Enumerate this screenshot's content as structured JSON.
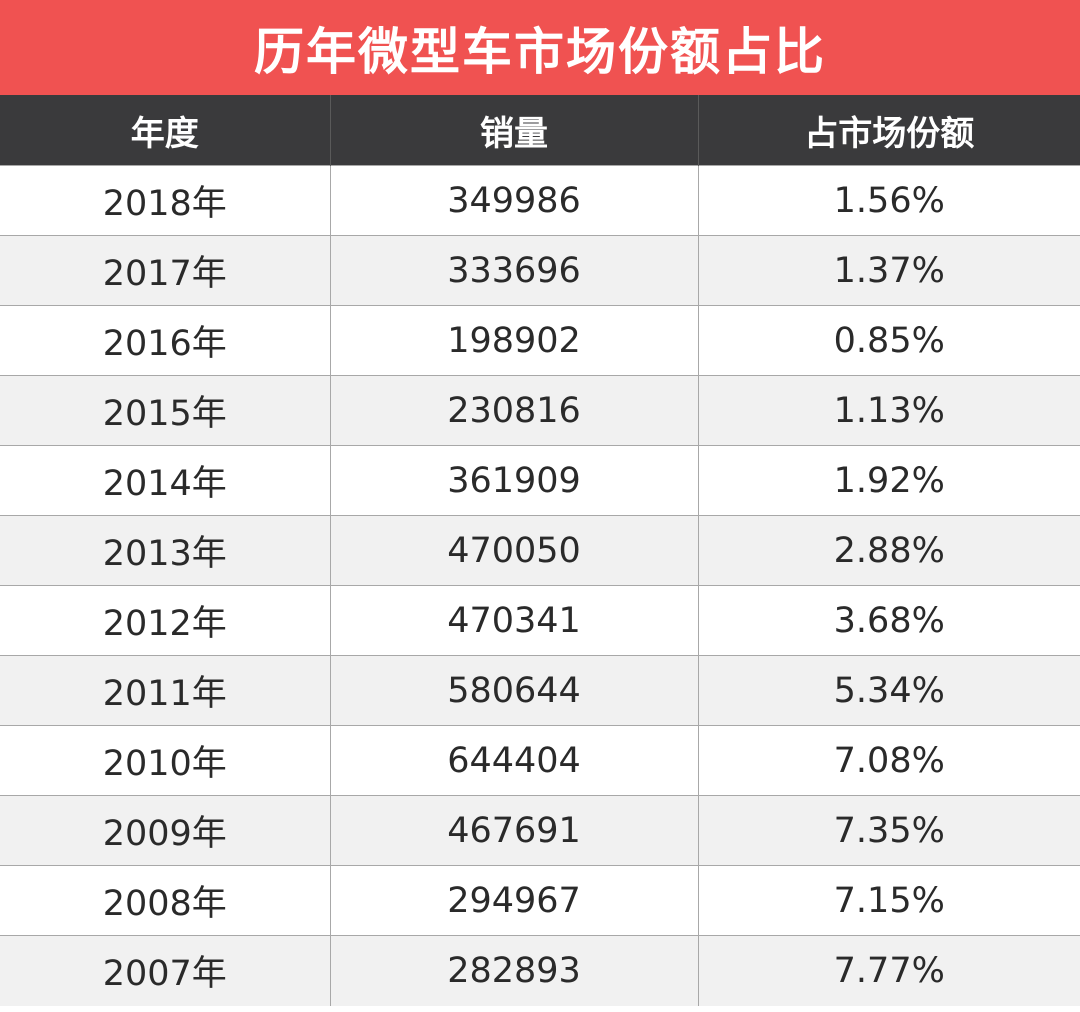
{
  "colors": {
    "title_background": "#f05251",
    "header_background": "#3a3a3c",
    "title_text": "#ffffff",
    "header_text": "#ffffff"
  },
  "chart_data": {
    "type": "table",
    "title": "历年微型车市场份额占比",
    "columns": [
      "年度",
      "销量",
      "占市场份额"
    ],
    "rows": [
      [
        "2018年",
        "349986",
        "1.56%"
      ],
      [
        "2017年",
        "333696",
        "1.37%"
      ],
      [
        "2016年",
        "198902",
        "0.85%"
      ],
      [
        "2015年",
        "230816",
        "1.13%"
      ],
      [
        "2014年",
        "361909",
        "1.92%"
      ],
      [
        "2013年",
        "470050",
        "2.88%"
      ],
      [
        "2012年",
        "470341",
        "3.68%"
      ],
      [
        "2011年",
        "580644",
        "5.34%"
      ],
      [
        "2010年",
        "644404",
        "7.08%"
      ],
      [
        "2009年",
        "467691",
        "7.35%"
      ],
      [
        "2008年",
        "294967",
        "7.15%"
      ],
      [
        "2007年",
        "282893",
        "7.77%"
      ]
    ]
  }
}
